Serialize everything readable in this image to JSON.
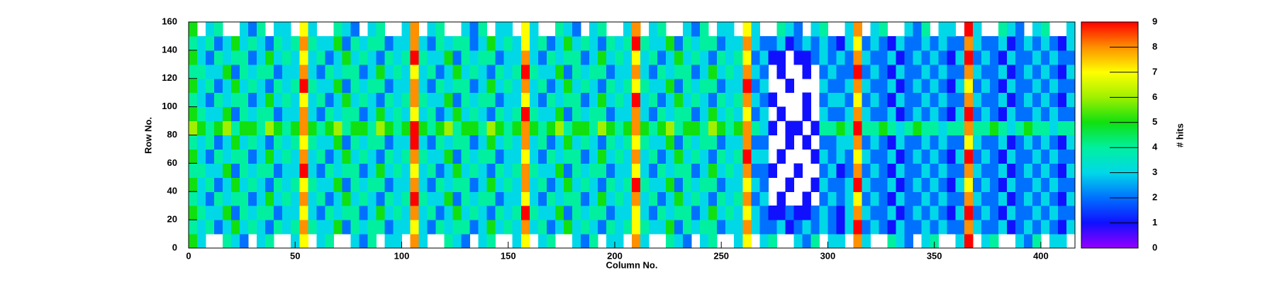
{
  "chart_data": {
    "type": "heatmap",
    "x_label": "Column No.",
    "y_label": "Row No.",
    "z_label": "# hits",
    "xlim": [
      0,
      416
    ],
    "ylim": [
      0,
      160
    ],
    "zlim": [
      0,
      9
    ],
    "xticks": [
      0,
      50,
      100,
      150,
      200,
      250,
      300,
      350,
      400
    ],
    "yticks": [
      0,
      20,
      40,
      60,
      80,
      100,
      120,
      140,
      160
    ],
    "zticks": [
      0,
      1,
      2,
      3,
      4,
      5,
      6,
      7,
      8,
      9
    ],
    "palette": [
      "#9400ff",
      "#1010ff",
      "#0070ff",
      "#00d8e8",
      "#00f0a0",
      "#10e010",
      "#a0f000",
      "#ffff00",
      "#ff9000",
      "#ff0000"
    ],
    "z": [
      [
        5,
        3,
        0,
        0,
        4,
        3,
        2,
        0,
        3,
        4,
        0,
        0,
        3,
        7,
        0,
        3,
        4,
        0,
        0,
        3,
        2,
        4,
        0,
        3,
        3,
        0,
        8,
        3,
        0,
        0,
        4,
        3,
        2,
        0,
        3,
        4,
        0,
        0,
        3,
        7,
        0,
        3,
        4,
        0,
        0,
        3,
        2,
        4,
        0,
        3,
        3,
        0,
        8,
        3,
        0,
        0,
        4,
        3,
        2,
        0,
        3,
        4,
        0,
        0,
        3,
        7,
        0,
        3,
        4,
        0,
        0,
        3,
        2,
        4,
        0,
        3,
        3,
        0,
        8,
        3,
        0,
        0,
        4,
        3,
        2,
        0,
        3,
        4,
        0,
        0,
        3,
        9,
        0,
        3,
        4,
        0,
        0,
        3,
        2,
        4,
        0,
        3,
        3,
        0
      ],
      [
        4,
        3,
        4,
        2,
        3,
        5,
        3,
        4,
        3,
        2,
        4,
        3,
        4,
        8,
        4,
        3,
        3,
        5,
        2,
        4,
        3,
        4,
        4,
        2,
        3,
        3,
        7,
        3,
        2,
        4,
        3,
        4,
        4,
        2,
        3,
        5,
        3,
        4,
        3,
        8,
        3,
        4,
        2,
        3,
        5,
        3,
        4,
        3,
        2,
        4,
        3,
        4,
        7,
        4,
        3,
        3,
        5,
        2,
        4,
        3,
        4,
        4,
        2,
        3,
        3,
        8,
        3,
        2,
        2,
        3,
        1,
        2,
        3,
        2,
        3,
        2,
        1,
        3,
        9,
        2,
        3,
        2,
        1,
        3,
        2,
        2,
        3,
        2,
        3,
        2,
        2,
        8,
        3,
        2,
        2,
        3,
        1,
        2,
        3,
        2,
        3,
        2,
        1,
        3
      ],
      [
        5,
        4,
        3,
        3,
        5,
        2,
        4,
        3,
        4,
        4,
        2,
        3,
        3,
        7,
        3,
        2,
        4,
        3,
        4,
        4,
        2,
        3,
        5,
        3,
        4,
        3,
        8,
        3,
        4,
        2,
        3,
        5,
        3,
        4,
        3,
        2,
        4,
        3,
        4,
        9,
        4,
        3,
        3,
        5,
        2,
        4,
        3,
        4,
        4,
        2,
        3,
        3,
        7,
        3,
        2,
        4,
        3,
        4,
        4,
        2,
        3,
        5,
        3,
        4,
        3,
        7,
        3,
        2,
        1,
        1,
        2,
        1,
        1,
        2,
        3,
        2,
        1,
        3,
        8,
        3,
        2,
        2,
        3,
        1,
        2,
        3,
        2,
        3,
        2,
        1,
        3,
        9,
        2,
        3,
        2,
        1,
        3,
        2,
        2,
        3,
        2,
        3,
        2,
        2
      ],
      [
        4,
        3,
        2,
        4,
        3,
        4,
        4,
        2,
        3,
        5,
        3,
        4,
        3,
        8,
        3,
        4,
        2,
        3,
        5,
        3,
        4,
        3,
        2,
        4,
        3,
        4,
        9,
        4,
        3,
        3,
        5,
        2,
        4,
        3,
        4,
        4,
        2,
        3,
        3,
        7,
        3,
        2,
        4,
        3,
        4,
        4,
        2,
        3,
        5,
        3,
        4,
        3,
        8,
        3,
        4,
        2,
        3,
        5,
        3,
        4,
        3,
        2,
        4,
        3,
        4,
        8,
        2,
        3,
        0,
        1,
        0,
        0,
        1,
        0,
        2,
        3,
        2,
        3,
        7,
        2,
        3,
        2,
        1,
        3,
        2,
        2,
        3,
        2,
        3,
        2,
        2,
        8,
        3,
        2,
        2,
        3,
        1,
        2,
        3,
        2,
        3,
        2,
        1,
        3
      ],
      [
        5,
        3,
        4,
        2,
        3,
        5,
        3,
        4,
        3,
        2,
        4,
        3,
        4,
        7,
        4,
        3,
        3,
        5,
        2,
        4,
        3,
        4,
        4,
        2,
        3,
        3,
        8,
        3,
        2,
        4,
        3,
        4,
        4,
        2,
        3,
        5,
        3,
        4,
        3,
        8,
        3,
        4,
        2,
        3,
        5,
        3,
        4,
        3,
        2,
        4,
        3,
        4,
        9,
        4,
        3,
        3,
        5,
        2,
        4,
        3,
        4,
        4,
        2,
        3,
        3,
        7,
        3,
        2,
        0,
        0,
        1,
        0,
        0,
        1,
        3,
        2,
        2,
        3,
        9,
        3,
        2,
        2,
        3,
        1,
        2,
        3,
        2,
        3,
        2,
        1,
        3,
        7,
        2,
        3,
        2,
        1,
        3,
        2,
        2,
        3,
        2,
        3,
        2,
        2
      ],
      [
        4,
        4,
        3,
        3,
        5,
        2,
        4,
        3,
        4,
        4,
        2,
        3,
        3,
        9,
        3,
        2,
        4,
        3,
        4,
        4,
        2,
        3,
        5,
        3,
        4,
        3,
        7,
        3,
        4,
        2,
        3,
        5,
        3,
        4,
        3,
        2,
        4,
        3,
        4,
        8,
        4,
        3,
        3,
        5,
        2,
        4,
        3,
        4,
        4,
        2,
        3,
        3,
        7,
        3,
        2,
        4,
        3,
        4,
        4,
        2,
        3,
        5,
        3,
        4,
        3,
        8,
        2,
        2,
        1,
        0,
        0,
        1,
        0,
        0,
        2,
        3,
        1,
        2,
        8,
        2,
        3,
        2,
        1,
        3,
        2,
        2,
        3,
        2,
        3,
        2,
        2,
        8,
        3,
        2,
        2,
        3,
        1,
        2,
        3,
        2,
        3,
        2,
        1,
        3
      ],
      [
        5,
        3,
        2,
        4,
        3,
        4,
        4,
        2,
        3,
        5,
        3,
        4,
        3,
        8,
        3,
        4,
        2,
        3,
        5,
        3,
        4,
        3,
        2,
        4,
        3,
        4,
        8,
        4,
        3,
        3,
        5,
        2,
        4,
        3,
        4,
        4,
        2,
        3,
        3,
        7,
        3,
        2,
        4,
        3,
        4,
        4,
        2,
        3,
        5,
        3,
        4,
        3,
        8,
        3,
        4,
        2,
        3,
        5,
        3,
        4,
        3,
        2,
        4,
        3,
        4,
        9,
        3,
        3,
        0,
        1,
        0,
        0,
        0,
        1,
        3,
        2,
        3,
        2,
        7,
        3,
        2,
        2,
        3,
        1,
        2,
        3,
        2,
        3,
        2,
        1,
        3,
        9,
        2,
        3,
        2,
        1,
        3,
        2,
        2,
        3,
        2,
        3,
        2,
        2
      ],
      [
        4,
        3,
        4,
        2,
        3,
        5,
        3,
        4,
        3,
        2,
        4,
        3,
        4,
        7,
        4,
        3,
        3,
        5,
        2,
        4,
        3,
        4,
        4,
        2,
        3,
        3,
        9,
        3,
        2,
        4,
        3,
        4,
        4,
        2,
        3,
        5,
        3,
        4,
        3,
        8,
        3,
        4,
        2,
        3,
        5,
        3,
        4,
        3,
        2,
        4,
        3,
        4,
        7,
        4,
        3,
        3,
        5,
        2,
        4,
        3,
        4,
        4,
        2,
        3,
        3,
        8,
        2,
        2,
        0,
        0,
        1,
        0,
        1,
        0,
        2,
        2,
        3,
        3,
        8,
        2,
        3,
        2,
        1,
        3,
        2,
        2,
        3,
        2,
        3,
        2,
        2,
        7,
        3,
        2,
        2,
        3,
        1,
        2,
        3,
        2,
        3,
        2,
        1,
        3
      ],
      [
        6,
        5,
        4,
        5,
        6,
        4,
        5,
        5,
        4,
        6,
        5,
        4,
        5,
        8,
        5,
        4,
        5,
        6,
        4,
        5,
        5,
        4,
        6,
        5,
        4,
        5,
        9,
        5,
        4,
        5,
        6,
        4,
        5,
        5,
        4,
        6,
        5,
        4,
        5,
        8,
        5,
        4,
        5,
        6,
        4,
        5,
        5,
        4,
        6,
        5,
        4,
        5,
        8,
        5,
        4,
        5,
        6,
        4,
        5,
        5,
        4,
        6,
        5,
        4,
        5,
        8,
        4,
        3,
        1,
        0,
        1,
        1,
        0,
        1,
        4,
        4,
        5,
        4,
        9,
        4,
        4,
        5,
        4,
        3,
        4,
        5,
        4,
        4,
        3,
        4,
        4,
        8,
        4,
        4,
        5,
        4,
        3,
        4,
        5,
        4,
        4,
        3,
        4,
        4
      ],
      [
        5,
        4,
        3,
        3,
        5,
        2,
        4,
        3,
        4,
        4,
        2,
        3,
        3,
        8,
        3,
        2,
        4,
        3,
        4,
        4,
        2,
        3,
        5,
        3,
        4,
        3,
        7,
        3,
        4,
        2,
        3,
        5,
        3,
        4,
        3,
        2,
        4,
        3,
        4,
        9,
        4,
        3,
        3,
        5,
        2,
        4,
        3,
        4,
        4,
        2,
        3,
        3,
        8,
        3,
        2,
        4,
        3,
        4,
        4,
        2,
        3,
        5,
        3,
        4,
        3,
        7,
        2,
        3,
        0,
        1,
        0,
        0,
        1,
        0,
        3,
        2,
        2,
        3,
        8,
        3,
        2,
        2,
        3,
        1,
        2,
        3,
        2,
        3,
        2,
        1,
        3,
        9,
        2,
        3,
        2,
        1,
        3,
        2,
        2,
        3,
        2,
        3,
        2,
        2
      ],
      [
        4,
        3,
        2,
        4,
        3,
        4,
        4,
        2,
        3,
        5,
        3,
        4,
        3,
        7,
        3,
        4,
        2,
        3,
        5,
        3,
        4,
        3,
        2,
        4,
        3,
        4,
        8,
        4,
        3,
        3,
        5,
        2,
        4,
        3,
        4,
        4,
        2,
        3,
        3,
        7,
        3,
        2,
        4,
        3,
        4,
        4,
        2,
        3,
        5,
        3,
        4,
        3,
        9,
        3,
        4,
        2,
        3,
        5,
        3,
        4,
        3,
        2,
        4,
        3,
        4,
        8,
        3,
        2,
        1,
        0,
        0,
        0,
        1,
        0,
        2,
        3,
        3,
        2,
        7,
        2,
        3,
        2,
        1,
        3,
        2,
        2,
        3,
        2,
        3,
        2,
        2,
        8,
        3,
        2,
        2,
        3,
        1,
        2,
        3,
        2,
        3,
        2,
        1,
        3
      ],
      [
        5,
        3,
        4,
        2,
        3,
        5,
        3,
        4,
        3,
        2,
        4,
        3,
        4,
        9,
        4,
        3,
        3,
        5,
        2,
        4,
        3,
        4,
        4,
        2,
        3,
        3,
        8,
        3,
        2,
        4,
        3,
        4,
        4,
        2,
        3,
        5,
        3,
        4,
        3,
        8,
        3,
        4,
        2,
        3,
        5,
        3,
        4,
        3,
        2,
        4,
        3,
        4,
        7,
        4,
        3,
        3,
        5,
        2,
        4,
        3,
        4,
        4,
        2,
        3,
        3,
        9,
        2,
        3,
        0,
        0,
        1,
        0,
        0,
        0,
        3,
        2,
        2,
        3,
        8,
        3,
        2,
        2,
        3,
        1,
        2,
        3,
        2,
        3,
        2,
        1,
        3,
        7,
        2,
        3,
        2,
        1,
        3,
        2,
        2,
        3,
        2,
        3,
        2,
        2
      ],
      [
        4,
        4,
        3,
        3,
        5,
        2,
        4,
        3,
        4,
        4,
        2,
        3,
        3,
        8,
        3,
        2,
        4,
        3,
        4,
        4,
        2,
        3,
        5,
        3,
        4,
        3,
        7,
        3,
        4,
        2,
        3,
        5,
        3,
        4,
        3,
        2,
        4,
        3,
        4,
        9,
        4,
        3,
        3,
        5,
        2,
        4,
        3,
        4,
        4,
        2,
        3,
        3,
        8,
        3,
        2,
        4,
        3,
        4,
        4,
        2,
        3,
        5,
        3,
        4,
        3,
        8,
        3,
        2,
        0,
        1,
        0,
        0,
        1,
        0,
        2,
        3,
        2,
        2,
        9,
        2,
        3,
        2,
        1,
        3,
        2,
        2,
        3,
        2,
        3,
        2,
        2,
        8,
        3,
        2,
        2,
        3,
        1,
        2,
        3,
        2,
        3,
        2,
        1,
        3
      ],
      [
        5,
        3,
        2,
        4,
        3,
        4,
        4,
        2,
        3,
        5,
        3,
        4,
        3,
        7,
        3,
        4,
        2,
        3,
        5,
        3,
        4,
        3,
        2,
        4,
        3,
        4,
        9,
        4,
        3,
        3,
        5,
        2,
        4,
        3,
        4,
        4,
        2,
        3,
        3,
        8,
        3,
        2,
        4,
        3,
        4,
        4,
        2,
        3,
        5,
        3,
        4,
        3,
        7,
        3,
        4,
        2,
        3,
        5,
        3,
        4,
        3,
        2,
        4,
        3,
        4,
        7,
        2,
        3,
        1,
        1,
        0,
        1,
        1,
        2,
        3,
        2,
        3,
        2,
        8,
        3,
        2,
        2,
        3,
        1,
        2,
        3,
        2,
        3,
        2,
        1,
        3,
        9,
        2,
        3,
        2,
        1,
        3,
        2,
        2,
        3,
        2,
        3,
        2,
        2
      ],
      [
        4,
        3,
        4,
        2,
        3,
        5,
        3,
        4,
        3,
        2,
        4,
        3,
        4,
        8,
        4,
        3,
        3,
        5,
        2,
        4,
        3,
        4,
        4,
        2,
        3,
        3,
        8,
        3,
        2,
        4,
        3,
        4,
        4,
        2,
        3,
        5,
        3,
        4,
        3,
        7,
        3,
        4,
        2,
        3,
        5,
        3,
        4,
        3,
        2,
        4,
        3,
        4,
        9,
        4,
        3,
        3,
        5,
        2,
        4,
        3,
        4,
        4,
        2,
        3,
        3,
        8,
        3,
        2,
        2,
        3,
        1,
        2,
        3,
        2,
        3,
        2,
        1,
        3,
        7,
        2,
        3,
        2,
        1,
        3,
        2,
        2,
        3,
        2,
        3,
        2,
        2,
        8,
        3,
        2,
        2,
        3,
        1,
        2,
        3,
        2,
        3,
        2,
        1,
        3
      ],
      [
        5,
        0,
        3,
        4,
        0,
        0,
        3,
        2,
        4,
        0,
        3,
        3,
        0,
        7,
        3,
        0,
        0,
        4,
        3,
        2,
        0,
        3,
        4,
        0,
        0,
        3,
        8,
        0,
        3,
        4,
        0,
        0,
        3,
        2,
        4,
        0,
        3,
        3,
        0,
        7,
        3,
        0,
        0,
        4,
        3,
        2,
        0,
        3,
        4,
        0,
        0,
        3,
        8,
        0,
        3,
        4,
        0,
        0,
        3,
        2,
        4,
        0,
        3,
        3,
        0,
        7,
        3,
        0,
        0,
        4,
        3,
        2,
        0,
        3,
        4,
        0,
        0,
        3,
        8,
        0,
        3,
        4,
        0,
        0,
        3,
        2,
        4,
        0,
        3,
        3,
        0,
        9,
        3,
        0,
        0,
        4,
        3,
        2,
        0,
        3,
        4,
        0,
        0,
        3
      ]
    ]
  }
}
